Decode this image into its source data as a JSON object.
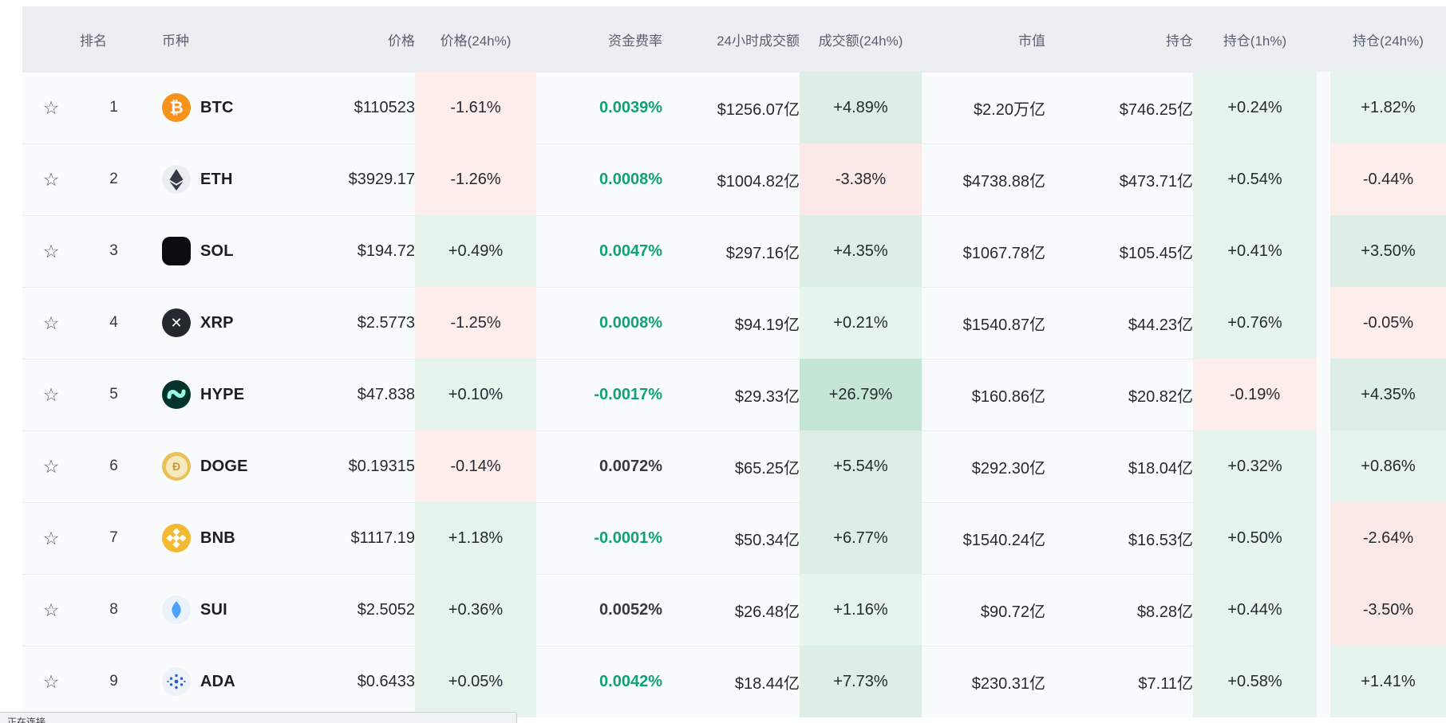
{
  "table": {
    "columns": [
      {
        "id": "fav",
        "label": ""
      },
      {
        "id": "rank",
        "label": "排名"
      },
      {
        "id": "coin",
        "label": "币种"
      },
      {
        "id": "price",
        "label": "价格"
      },
      {
        "id": "price_chg",
        "label": "价格(24h%)"
      },
      {
        "id": "funding",
        "label": "资金费率"
      },
      {
        "id": "volume",
        "label": "24小时成交额"
      },
      {
        "id": "vol_chg",
        "label": "成交额(24h%)"
      },
      {
        "id": "mcap",
        "label": "市值"
      },
      {
        "id": "oi",
        "label": "持仓"
      },
      {
        "id": "oi_1h",
        "label": "持仓(1h%)"
      },
      {
        "id": "oi_24h",
        "label": "持仓(24h%)"
      }
    ],
    "rows": [
      {
        "rank": "1",
        "symbol": "BTC",
        "icon": "btc-coin-icon",
        "icon_bg": "#f7931a",
        "icon_fg": "#ffffff",
        "price": "$110523",
        "price_chg": "-1.61%",
        "funding": "0.0039%",
        "funding_green": true,
        "volume": "$1256.07亿",
        "vol_chg": "+4.89%",
        "mcap": "$2.20万亿",
        "oi": "$746.25亿",
        "oi_1h": "+0.24%",
        "oi_24h": "+1.82%"
      },
      {
        "rank": "2",
        "symbol": "ETH",
        "icon": "eth-coin-icon",
        "icon_bg": "#eceff2",
        "icon_fg": "#343a46",
        "price": "$3929.17",
        "price_chg": "-1.26%",
        "funding": "0.0008%",
        "funding_green": true,
        "volume": "$1004.82亿",
        "vol_chg": "-3.38%",
        "mcap": "$4738.88亿",
        "oi": "$473.71亿",
        "oi_1h": "+0.54%",
        "oi_24h": "-0.44%"
      },
      {
        "rank": "3",
        "symbol": "SOL",
        "icon": "sol-coin-icon",
        "icon_bg": "#0b0d12",
        "icon_fg": "#00ffa3",
        "price": "$194.72",
        "price_chg": "+0.49%",
        "funding": "0.0047%",
        "funding_green": true,
        "volume": "$297.16亿",
        "vol_chg": "+4.35%",
        "mcap": "$1067.78亿",
        "oi": "$105.45亿",
        "oi_1h": "+0.41%",
        "oi_24h": "+3.50%"
      },
      {
        "rank": "4",
        "symbol": "XRP",
        "icon": "xrp-coin-icon",
        "icon_bg": "#23292f",
        "icon_fg": "#ffffff",
        "price": "$2.5773",
        "price_chg": "-1.25%",
        "funding": "0.0008%",
        "funding_green": true,
        "volume": "$94.19亿",
        "vol_chg": "+0.21%",
        "mcap": "$1540.87亿",
        "oi": "$44.23亿",
        "oi_1h": "+0.76%",
        "oi_24h": "-0.05%"
      },
      {
        "rank": "5",
        "symbol": "HYPE",
        "icon": "hype-coin-icon",
        "icon_bg": "#04332c",
        "icon_fg": "#97fce4",
        "price": "$47.838",
        "price_chg": "+0.10%",
        "funding": "-0.0017%",
        "funding_green": true,
        "volume": "$29.33亿",
        "vol_chg": "+26.79%",
        "mcap": "$160.86亿",
        "oi": "$20.82亿",
        "oi_1h": "-0.19%",
        "oi_24h": "+4.35%"
      },
      {
        "rank": "6",
        "symbol": "DOGE",
        "icon": "doge-coin-icon",
        "icon_bg": "#e9c155",
        "icon_fg": "#c79b2e",
        "price": "$0.19315",
        "price_chg": "-0.14%",
        "funding": "0.0072%",
        "funding_green": false,
        "volume": "$65.25亿",
        "vol_chg": "+5.54%",
        "mcap": "$292.30亿",
        "oi": "$18.04亿",
        "oi_1h": "+0.32%",
        "oi_24h": "+0.86%"
      },
      {
        "rank": "7",
        "symbol": "BNB",
        "icon": "bnb-coin-icon",
        "icon_bg": "#f3ba2f",
        "icon_fg": "#ffffff",
        "price": "$1117.19",
        "price_chg": "+1.18%",
        "funding": "-0.0001%",
        "funding_green": true,
        "volume": "$50.34亿",
        "vol_chg": "+6.77%",
        "mcap": "$1540.24亿",
        "oi": "$16.53亿",
        "oi_1h": "+0.50%",
        "oi_24h": "-2.64%"
      },
      {
        "rank": "8",
        "symbol": "SUI",
        "icon": "sui-coin-icon",
        "icon_bg": "#e9f2fd",
        "icon_fg": "#4ba3ff",
        "price": "$2.5052",
        "price_chg": "+0.36%",
        "funding": "0.0052%",
        "funding_green": false,
        "volume": "$26.48亿",
        "vol_chg": "+1.16%",
        "mcap": "$90.72亿",
        "oi": "$8.28亿",
        "oi_1h": "+0.44%",
        "oi_24h": "-3.50%"
      },
      {
        "rank": "9",
        "symbol": "ADA",
        "icon": "ada-coin-icon",
        "icon_bg": "#eef2f9",
        "icon_fg": "#2f5bd0",
        "price": "$0.6433",
        "price_chg": "+0.05%",
        "funding": "0.0042%",
        "funding_green": true,
        "volume": "$18.44亿",
        "vol_chg": "+7.73%",
        "mcap": "$230.31亿",
        "oi": "$7.11亿",
        "oi_1h": "+0.58%",
        "oi_24h": "+1.41%"
      }
    ],
    "favorite_glyph": "☆"
  },
  "status_bar": {
    "text": "正在连接..."
  },
  "colors": {
    "header_bg": "#eceef2",
    "row_bg": "#fafbfc",
    "separator": "#ebedf0",
    "funding_green_text": "#12a173",
    "funding_dark_text": "#363b42",
    "tint_green_light": "#e7f3ed",
    "tint_green_medium": "#dceee5",
    "tint_green_strong": "#c5e6d4",
    "tint_red_light": "#fdeeec",
    "tint_red_medium": "#fbe9e7"
  }
}
